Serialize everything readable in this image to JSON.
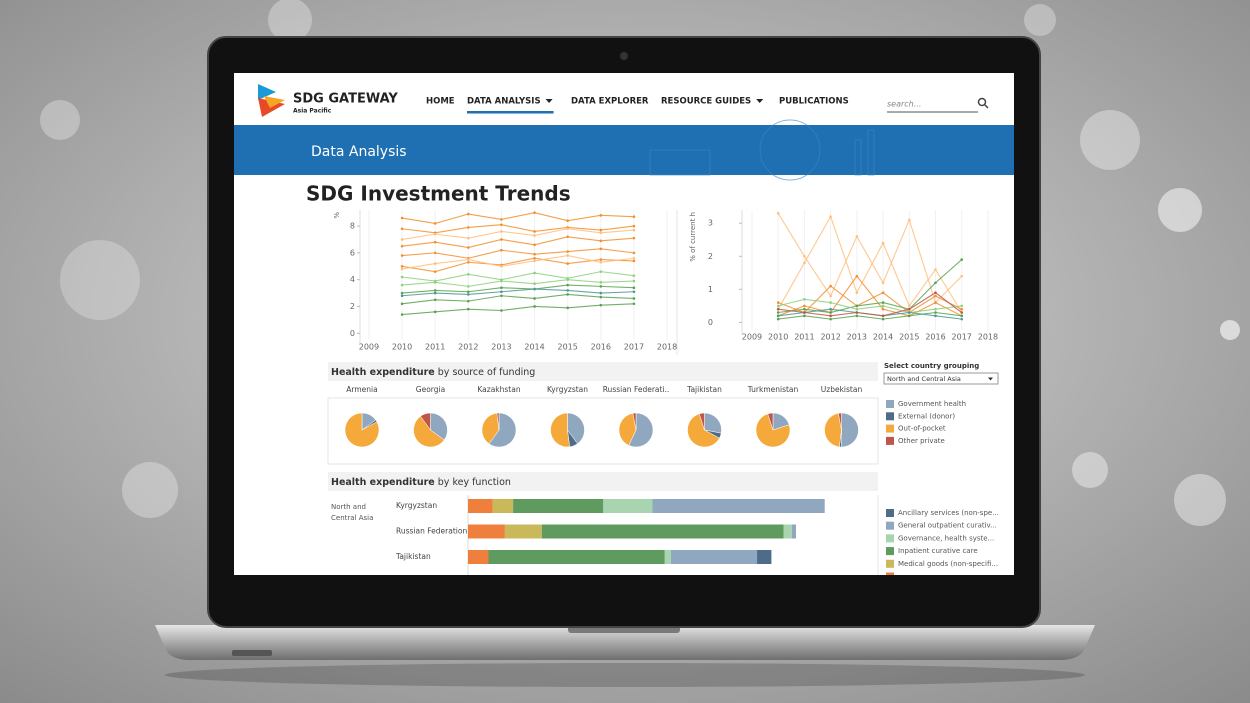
{
  "header": {
    "logo_title": "SDG GATEWAY",
    "logo_subtitle": "Asia Pacific",
    "nav": [
      {
        "label": "HOME"
      },
      {
        "label": "DATA ANALYSIS",
        "dropdown": true,
        "active": true
      },
      {
        "label": "DATA EXPLORER"
      },
      {
        "label": "RESOURCE GUIDES",
        "dropdown": true
      },
      {
        "label": "PUBLICATIONS"
      }
    ],
    "search_placeholder": "search..."
  },
  "banner": "Data Analysis",
  "title": "SDG Investment Trends",
  "line_charts": [
    {
      "type": "line",
      "ylabel": "%",
      "x": [
        2010,
        2011,
        2012,
        2013,
        2014,
        2015,
        2016,
        2017
      ],
      "xticks": [
        2009,
        2010,
        2011,
        2012,
        2013,
        2014,
        2015,
        2016,
        2017,
        2018
      ],
      "xlim": [
        2008.73,
        2018.27
      ],
      "ylim": [
        -0.8,
        9.2
      ],
      "yticks": [
        0,
        2,
        4,
        6,
        8
      ],
      "series": [
        {
          "color": "#f28e2b",
          "values": [
            8.6,
            8.2,
            8.9,
            8.5,
            9.0,
            8.4,
            8.8,
            8.7
          ]
        },
        {
          "color": "#f28e2b",
          "values": [
            7.8,
            7.5,
            7.9,
            8.1,
            7.6,
            7.9,
            7.7,
            8.0
          ]
        },
        {
          "color": "#f28e2b",
          "values": [
            6.5,
            6.8,
            6.4,
            7.0,
            6.6,
            7.2,
            6.9,
            7.1
          ]
        },
        {
          "color": "#f28e2b",
          "values": [
            5.8,
            6.0,
            5.6,
            6.2,
            5.9,
            6.1,
            6.3,
            6.0
          ]
        },
        {
          "color": "#f28e2b",
          "values": [
            5.0,
            4.6,
            5.3,
            5.1,
            5.6,
            5.2,
            5.5,
            5.4
          ]
        },
        {
          "color": "#ffbe7d",
          "values": [
            7.0,
            7.4,
            7.1,
            7.6,
            7.3,
            7.8,
            7.5,
            7.7
          ]
        },
        {
          "color": "#ffbe7d",
          "values": [
            4.8,
            5.2,
            5.5,
            5.0,
            5.4,
            5.8,
            5.3,
            5.6
          ]
        },
        {
          "color": "#59a14f",
          "values": [
            3.0,
            3.2,
            3.1,
            3.4,
            3.3,
            3.6,
            3.5,
            3.4
          ]
        },
        {
          "color": "#59a14f",
          "values": [
            2.2,
            2.5,
            2.4,
            2.8,
            2.6,
            2.9,
            2.7,
            2.6
          ]
        },
        {
          "color": "#59a14f",
          "values": [
            1.4,
            1.6,
            1.8,
            1.7,
            2.0,
            1.9,
            2.1,
            2.2
          ]
        },
        {
          "color": "#8cd17d",
          "values": [
            4.2,
            3.9,
            4.4,
            4.0,
            4.5,
            4.1,
            4.6,
            4.3
          ]
        },
        {
          "color": "#8cd17d",
          "values": [
            3.6,
            3.8,
            3.5,
            3.9,
            3.7,
            4.0,
            3.8,
            3.9
          ]
        },
        {
          "color": "#499894",
          "values": [
            2.8,
            3.0,
            2.9,
            3.1,
            3.3,
            3.2,
            3.0,
            3.1
          ]
        }
      ]
    },
    {
      "type": "line",
      "ylabel": "% of current h",
      "x": [
        2010,
        2011,
        2012,
        2013,
        2014,
        2015,
        2016,
        2017
      ],
      "xticks": [
        2009,
        2010,
        2011,
        2012,
        2013,
        2014,
        2015,
        2016,
        2017,
        2018
      ],
      "xlim": [
        2008.62,
        2018.46
      ],
      "ylim": [
        -0.35,
        3.4
      ],
      "yticks": [
        0,
        1,
        2,
        3
      ],
      "series": [
        {
          "color": "#ffbe7d",
          "values": [
            3.3,
            2.0,
            0.8,
            2.6,
            1.2,
            3.1,
            0.6,
            1.4
          ]
        },
        {
          "color": "#ffbe7d",
          "values": [
            0.4,
            1.8,
            3.2,
            0.9,
            2.4,
            0.5,
            1.6,
            0.3
          ]
        },
        {
          "color": "#f28e2b",
          "values": [
            0.6,
            0.3,
            1.1,
            0.5,
            0.9,
            0.3,
            0.8,
            0.4
          ]
        },
        {
          "color": "#f28e2b",
          "values": [
            0.2,
            0.5,
            0.3,
            1.4,
            0.4,
            0.2,
            0.6,
            0.2
          ]
        },
        {
          "color": "#59a14f",
          "values": [
            0.3,
            0.4,
            0.3,
            0.5,
            0.6,
            0.4,
            1.2,
            1.9
          ]
        },
        {
          "color": "#59a14f",
          "values": [
            0.1,
            0.2,
            0.1,
            0.2,
            0.1,
            0.2,
            0.3,
            0.2
          ]
        },
        {
          "color": "#8cd17d",
          "values": [
            0.5,
            0.7,
            0.6,
            0.4,
            0.5,
            0.3,
            0.4,
            0.5
          ]
        },
        {
          "color": "#499894",
          "values": [
            0.2,
            0.3,
            0.4,
            0.3,
            0.2,
            0.3,
            0.2,
            0.1
          ]
        },
        {
          "color": "#c0564a",
          "values": [
            0.4,
            0.3,
            0.2,
            0.3,
            0.2,
            0.4,
            0.9,
            0.3
          ]
        }
      ]
    }
  ],
  "pie_panel": {
    "type": "pie",
    "title_bold": "Health expenditure",
    "title_rest": " by source of funding",
    "categories": [
      "Armenia",
      "Georgia",
      "Kazakhstan",
      "Kyrgyzstan",
      "Russian Federati..",
      "Tajikistan",
      "Turkmenistan",
      "Uzbekistan"
    ],
    "series": [
      {
        "name": "Government health",
        "color": "#8fa8c0",
        "values": [
          15,
          35,
          60,
          40,
          57,
          28,
          20,
          50
        ]
      },
      {
        "name": "External (donor)",
        "color": "#4e6b8a",
        "values": [
          2,
          0,
          0,
          8,
          0,
          5,
          0,
          2
        ]
      },
      {
        "name": "Out-of-pocket",
        "color": "#f5a93a",
        "values": [
          83,
          55,
          38,
          52,
          40,
          62,
          75,
          45
        ]
      },
      {
        "name": "Other private",
        "color": "#c0564a",
        "values": [
          0,
          10,
          2,
          0,
          3,
          5,
          5,
          3
        ]
      }
    ]
  },
  "selector": {
    "label": "Select country grouping",
    "value": "North and Central Asia"
  },
  "bar_panel": {
    "type": "bar",
    "title_bold": "Health expenditure",
    "title_rest": " by key function",
    "group": [
      "North and",
      "Central Asia"
    ],
    "categories": [
      "Kyrgyzstan",
      "Russian Federation",
      "Tajikistan"
    ],
    "xlim": [
      0,
      100
    ],
    "series": [
      {
        "color": "#ef7f3c",
        "values": [
          6,
          9,
          5
        ]
      },
      {
        "name": "Medical goods (non-specifi...",
        "color": "#c9b95a",
        "values": [
          5,
          9,
          0
        ]
      },
      {
        "name": "Inpatient curative care",
        "color": "#5f9a5f",
        "values": [
          22,
          59,
          43
        ]
      },
      {
        "name": "Governance, health syste...",
        "color": "#a8d5b0",
        "values": [
          12,
          2,
          1.5
        ]
      },
      {
        "name": "General outpatient curativ...",
        "color": "#8fa8c0",
        "values": [
          42,
          1,
          21
        ]
      },
      {
        "name": "Ancillary services (non-spe...",
        "color": "#4e6b8a",
        "values": [
          0,
          0,
          3.5
        ]
      }
    ]
  }
}
